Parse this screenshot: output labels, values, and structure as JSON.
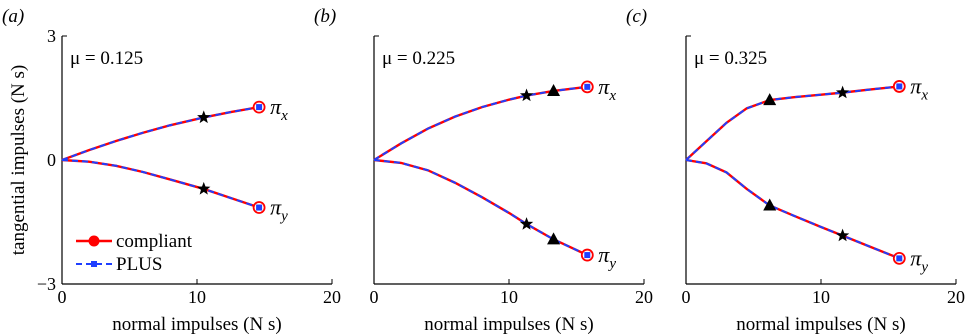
{
  "colors": {
    "compliant": "#ff0000",
    "plus": "#1f3fff",
    "axis": "#000000"
  },
  "chart_data": [
    {
      "type": "line",
      "panel_label": "(a)",
      "annotation": "μ = 0.125",
      "xlabel": "normal impulses (N s)",
      "ylabel": "tangential impulses (N s)",
      "xlim": [
        0,
        20
      ],
      "ylim": [
        -3,
        3
      ],
      "xticks": [
        "0",
        "10",
        "20"
      ],
      "yticks": [
        "−3",
        "0",
        "3"
      ],
      "legend": {
        "placement": "bottom-left",
        "entries": [
          "compliant",
          "PLUS"
        ]
      },
      "series": [
        {
          "name": "compliant",
          "curves": [
            {
              "label": "πx",
              "x": [
                0,
                2,
                4,
                6,
                8,
                10.5,
                12.5,
                14.6
              ],
              "y": [
                0,
                0.24,
                0.46,
                0.66,
                0.84,
                1.03,
                1.16,
                1.28
              ]
            },
            {
              "label": "πy",
              "x": [
                0,
                2,
                4,
                6,
                8,
                10.5,
                12.5,
                14.6
              ],
              "y": [
                0,
                -0.04,
                -0.14,
                -0.29,
                -0.47,
                -0.7,
                -0.92,
                -1.15
              ]
            }
          ]
        },
        {
          "name": "PLUS",
          "curves": [
            {
              "label": "πx",
              "x": [
                0,
                2,
                4,
                6,
                8,
                10.5,
                12.5,
                14.6
              ],
              "y": [
                0,
                0.24,
                0.46,
                0.66,
                0.84,
                1.03,
                1.16,
                1.28
              ]
            },
            {
              "label": "πy",
              "x": [
                0,
                2,
                4,
                6,
                8,
                10.5,
                12.5,
                14.6
              ],
              "y": [
                0,
                -0.04,
                -0.14,
                -0.29,
                -0.47,
                -0.7,
                -0.92,
                -1.15
              ]
            }
          ]
        }
      ],
      "markers": {
        "stars": [
          {
            "x": 10.5,
            "y": 1.03
          },
          {
            "x": 10.5,
            "y": -0.7
          }
        ],
        "triangles": []
      },
      "curve_labels": [
        {
          "text": "π",
          "sub": "x",
          "x": 14.6,
          "y": 1.28
        },
        {
          "text": "π",
          "sub": "y",
          "x": 14.6,
          "y": -1.15
        }
      ]
    },
    {
      "type": "line",
      "panel_label": "(b)",
      "annotation": "μ = 0.225",
      "xlabel": "normal impulses (N s)",
      "xlim": [
        0,
        20
      ],
      "ylim": [
        -3,
        3
      ],
      "xticks": [
        "0",
        "10",
        "20"
      ],
      "series": [
        {
          "name": "compliant",
          "curves": [
            {
              "label": "πx",
              "x": [
                0,
                2,
                4,
                6,
                8,
                10,
                11.3,
                13.3,
                15.8
              ],
              "y": [
                0,
                0.4,
                0.76,
                1.05,
                1.28,
                1.46,
                1.56,
                1.67,
                1.77
              ]
            },
            {
              "label": "πy",
              "x": [
                0,
                2,
                4,
                6,
                8,
                10,
                11.3,
                13.3,
                15.8
              ],
              "y": [
                0,
                -0.07,
                -0.25,
                -0.55,
                -0.9,
                -1.28,
                -1.55,
                -1.92,
                -2.3
              ]
            }
          ]
        },
        {
          "name": "PLUS",
          "curves": [
            {
              "label": "πx",
              "x": [
                0,
                2,
                4,
                6,
                8,
                10,
                11.3,
                13.3,
                15.8
              ],
              "y": [
                0,
                0.4,
                0.76,
                1.05,
                1.28,
                1.46,
                1.56,
                1.67,
                1.77
              ]
            },
            {
              "label": "πy",
              "x": [
                0,
                2,
                4,
                6,
                8,
                10,
                11.3,
                13.3,
                15.8
              ],
              "y": [
                0,
                -0.07,
                -0.25,
                -0.55,
                -0.9,
                -1.28,
                -1.55,
                -1.92,
                -2.3
              ]
            }
          ]
        }
      ],
      "markers": {
        "stars": [
          {
            "x": 11.3,
            "y": 1.56
          },
          {
            "x": 11.3,
            "y": -1.55
          }
        ],
        "triangles": [
          {
            "x": 13.3,
            "y": 1.67
          },
          {
            "x": 13.3,
            "y": -1.92
          }
        ]
      },
      "curve_labels": [
        {
          "text": "π",
          "sub": "x",
          "x": 15.8,
          "y": 1.77
        },
        {
          "text": "π",
          "sub": "y",
          "x": 15.8,
          "y": -2.3
        }
      ]
    },
    {
      "type": "line",
      "panel_label": "(c)",
      "annotation": "μ = 0.325",
      "xlabel": "normal impulses (N s)",
      "xlim": [
        0,
        20
      ],
      "ylim": [
        -3,
        3
      ],
      "xticks": [
        "0",
        "10",
        "20"
      ],
      "series": [
        {
          "name": "compliant",
          "curves": [
            {
              "label": "πx",
              "x": [
                0,
                1.5,
                3,
                4.5,
                6.2,
                8,
                10,
                11.6,
                13.5,
                15.8
              ],
              "y": [
                0,
                0.45,
                0.9,
                1.25,
                1.45,
                1.52,
                1.58,
                1.63,
                1.7,
                1.78
              ]
            },
            {
              "label": "πy",
              "x": [
                0,
                1.5,
                3,
                4.5,
                6.2,
                8,
                10,
                11.6,
                13.5,
                15.8
              ],
              "y": [
                0,
                -0.08,
                -0.3,
                -0.7,
                -1.1,
                -1.35,
                -1.62,
                -1.83,
                -2.08,
                -2.38
              ]
            }
          ]
        },
        {
          "name": "PLUS",
          "curves": [
            {
              "label": "πx",
              "x": [
                0,
                1.5,
                3,
                4.5,
                6.2,
                8,
                10,
                11.6,
                13.5,
                15.8
              ],
              "y": [
                0,
                0.45,
                0.9,
                1.25,
                1.45,
                1.52,
                1.58,
                1.63,
                1.7,
                1.78
              ]
            },
            {
              "label": "πy",
              "x": [
                0,
                1.5,
                3,
                4.5,
                6.2,
                8,
                10,
                11.6,
                13.5,
                15.8
              ],
              "y": [
                0,
                -0.08,
                -0.3,
                -0.7,
                -1.1,
                -1.35,
                -1.62,
                -1.83,
                -2.08,
                -2.38
              ]
            }
          ]
        }
      ],
      "markers": {
        "stars": [
          {
            "x": 11.6,
            "y": 1.63
          },
          {
            "x": 11.6,
            "y": -1.83
          }
        ],
        "triangles": [
          {
            "x": 6.2,
            "y": 1.45
          },
          {
            "x": 6.2,
            "y": -1.1
          }
        ]
      },
      "curve_labels": [
        {
          "text": "π",
          "sub": "x",
          "x": 15.8,
          "y": 1.78
        },
        {
          "text": "π",
          "sub": "y",
          "x": 15.8,
          "y": -2.38
        }
      ]
    }
  ]
}
